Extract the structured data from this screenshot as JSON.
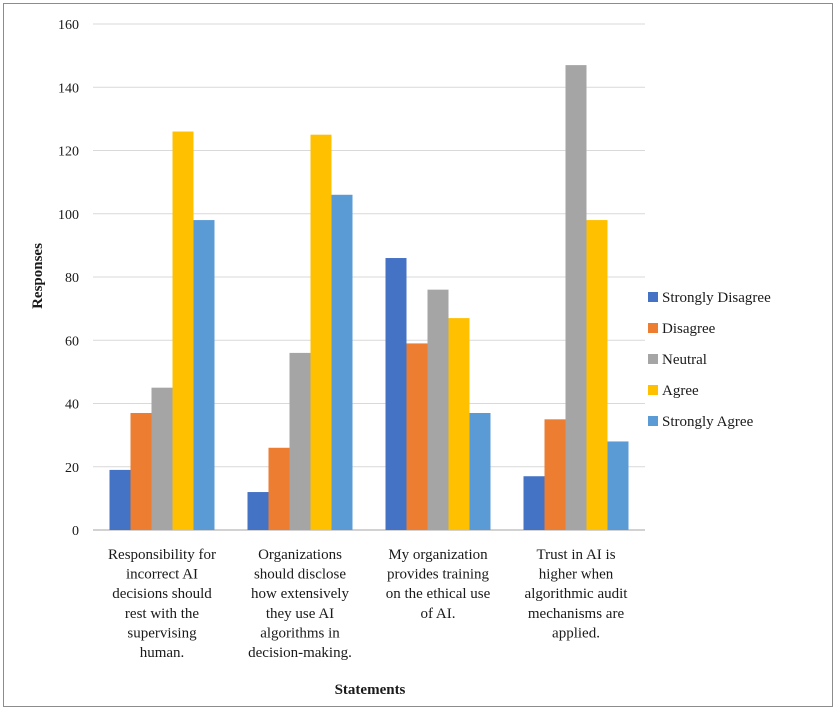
{
  "chart_data": {
    "type": "bar",
    "title": "",
    "xlabel": "Statements",
    "ylabel": "Responses",
    "ylim": [
      0,
      160
    ],
    "yticks": [
      0,
      20,
      40,
      60,
      80,
      100,
      120,
      140,
      160
    ],
    "grid": true,
    "legend_position": "right",
    "categories": [
      [
        "Responsibility for",
        "incorrect AI",
        "decisions should",
        "rest with the",
        "supervising",
        "human."
      ],
      [
        "Organizations",
        "should disclose",
        "how extensively",
        "they use AI",
        "algorithms in",
        "decision-making."
      ],
      [
        "My organization",
        "provides training",
        "on the ethical use",
        "of AI."
      ],
      [
        "Trust in AI is",
        "higher when",
        "algorithmic audit",
        "mechanisms are",
        "applied."
      ]
    ],
    "series": [
      {
        "name": "Strongly Disagree",
        "color": "#4472c4",
        "values": [
          19,
          12,
          86,
          17
        ]
      },
      {
        "name": "Disagree",
        "color": "#ed7d31",
        "values": [
          37,
          26,
          59,
          35
        ]
      },
      {
        "name": "Neutral",
        "color": "#a5a5a5",
        "values": [
          45,
          56,
          76,
          147
        ]
      },
      {
        "name": "Agree",
        "color": "#ffc000",
        "values": [
          126,
          125,
          67,
          98
        ]
      },
      {
        "name": "Strongly Agree",
        "color": "#5b9bd5",
        "values": [
          98,
          106,
          37,
          28
        ]
      }
    ]
  }
}
